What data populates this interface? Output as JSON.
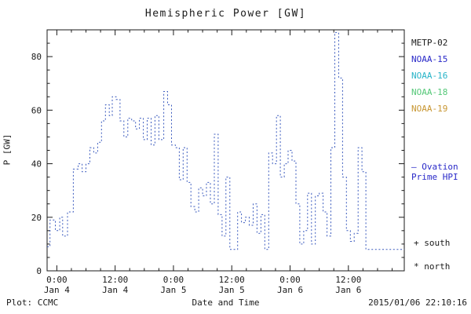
{
  "title": "Hemispheric Power [GW]",
  "ylabel": "P [GW]",
  "footer": {
    "plot_credit": "Plot: CCMC",
    "xlabel": "Date and Time",
    "timestamp": "2015/01/06 22:10:16"
  },
  "legend": {
    "satellites": [
      {
        "label": "METP-02",
        "color": "#1a1a1a"
      },
      {
        "label": "NOAA-15",
        "color": "#2929c8"
      },
      {
        "label": "NOAA-16",
        "color": "#28b4c8"
      },
      {
        "label": "NOAA-18",
        "color": "#55c878"
      },
      {
        "label": "NOAA-19",
        "color": "#c89632"
      }
    ],
    "ovation_line1": "– Ovation",
    "ovation_line2": "Prime HPI",
    "ovation_color": "#2929c8",
    "south_marker": "+ south",
    "north_marker": "* north"
  },
  "chart_data": {
    "type": "line",
    "subtype": "step-dotted",
    "series_name": "Ovation Prime HPI",
    "color": "#3a5abe",
    "axis_color": "#1a1a1a",
    "title": "Hemispheric Power [GW]",
    "xlabel": "Date and Time",
    "ylabel": "P [GW]",
    "grid": false,
    "legend_position": "right",
    "xlim": [
      -2,
      71.5
    ],
    "ylim": [
      0,
      90
    ],
    "yticks": [
      0,
      20,
      40,
      60,
      80
    ],
    "y_minor_step": 5,
    "x_minor_step": 3,
    "xticks": [
      {
        "h": 0,
        "line1": "0:00",
        "line2": "Jan 4"
      },
      {
        "h": 12,
        "line1": "12:00",
        "line2": "Jan 4"
      },
      {
        "h": 24,
        "line1": "0:00",
        "line2": "Jan 5"
      },
      {
        "h": 36,
        "line1": "12:00",
        "line2": "Jan 5"
      },
      {
        "h": 48,
        "line1": "0:00",
        "line2": "Jan 6"
      },
      {
        "h": 60,
        "line1": "12:00",
        "line2": "Jan 6"
      }
    ],
    "x_hours": [
      -2.0,
      -1.4,
      -0.3,
      0.6,
      1.2,
      2.2,
      3.4,
      4.4,
      5.2,
      6.0,
      6.8,
      7.6,
      8.4,
      9.2,
      10.0,
      10.8,
      11.4,
      12.2,
      13.0,
      13.8,
      14.6,
      15.4,
      16.2,
      17.0,
      17.8,
      18.6,
      19.4,
      20.2,
      21.0,
      22.0,
      22.8,
      23.6,
      24.4,
      25.2,
      26.0,
      26.8,
      27.6,
      28.4,
      29.2,
      30.0,
      30.8,
      31.6,
      32.4,
      33.2,
      34.0,
      34.8,
      35.6,
      37.2,
      38.0,
      38.8,
      39.6,
      40.4,
      41.2,
      42.0,
      42.8,
      43.6,
      44.4,
      45.2,
      46.0,
      46.8,
      47.6,
      48.4,
      49.2,
      50.0,
      50.8,
      51.6,
      52.4,
      53.2,
      54.0,
      54.8,
      55.6,
      56.4,
      57.2,
      58.0,
      58.8,
      59.6,
      60.4,
      61.2,
      62.0,
      62.8,
      63.6,
      65.0
    ],
    "values": [
      9,
      19,
      15,
      20,
      13,
      22,
      38,
      40,
      37,
      40,
      46,
      44,
      48,
      56,
      62,
      58,
      65,
      64,
      56,
      50,
      57,
      56,
      53,
      57,
      49,
      57,
      47,
      58,
      49,
      67,
      62,
      47,
      46,
      34,
      46,
      33,
      24,
      22,
      31,
      28,
      33,
      25,
      51,
      21,
      13,
      35,
      8,
      22,
      18,
      20,
      17,
      25,
      14,
      21,
      8,
      44,
      40,
      58,
      35,
      40,
      45,
      41,
      25,
      10,
      15,
      29,
      10,
      28,
      29,
      22,
      13,
      46,
      89,
      72,
      35,
      15,
      11,
      14,
      46,
      37,
      8,
      8
    ]
  }
}
